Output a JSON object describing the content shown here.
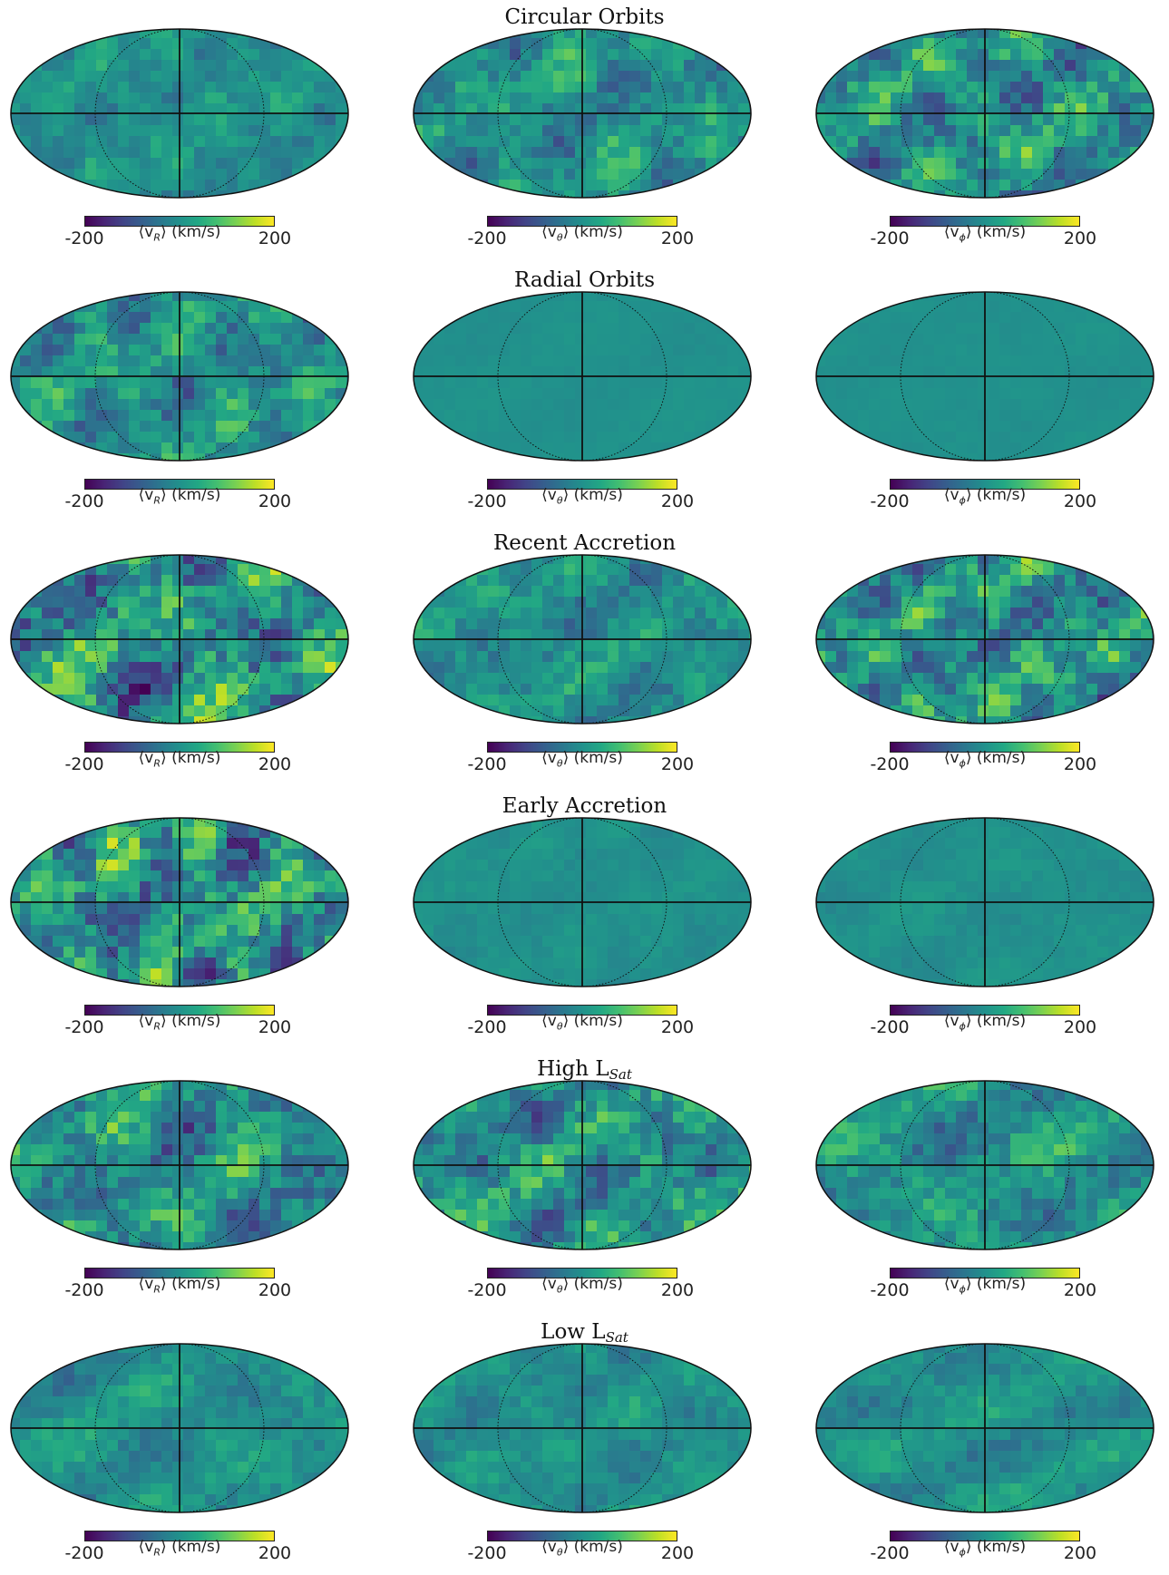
{
  "colors": {
    "viridis": [
      "#440154",
      "#482475",
      "#414487",
      "#355f8d",
      "#2a788e",
      "#21918c",
      "#22a884",
      "#44bf70",
      "#7ad151",
      "#bddf26",
      "#fde725"
    ],
    "grid_line": "#111111"
  },
  "chart_data": {
    "type": "heatmap",
    "projection": "mollweide",
    "grid": true,
    "colorbar": {
      "min": -200,
      "max": 200,
      "colormap": "viridis",
      "tick_min": "-200",
      "tick_max": "200"
    },
    "columns": [
      {
        "quantity": "v",
        "subscript": "R",
        "label_prefix": "⟨v",
        "label_suffix": "⟩ (km/s)"
      },
      {
        "quantity": "v",
        "subscript": "θ",
        "label_prefix": "⟨v",
        "label_suffix": "⟩ (km/s)"
      },
      {
        "quantity": "v",
        "subscript": "ϕ",
        "label_prefix": "⟨v",
        "label_suffix": "⟩ (km/s)"
      }
    ],
    "rows": [
      {
        "title_main": "Circular Orbits",
        "title_sub": "",
        "amplitudes": [
          0.35,
          0.55,
          0.7
        ]
      },
      {
        "title_main": "Radial Orbits",
        "title_sub": "",
        "amplitudes": [
          0.6,
          0.05,
          0.05
        ]
      },
      {
        "title_main": "Recent Accretion",
        "title_sub": "",
        "amplitudes": [
          0.95,
          0.45,
          0.75
        ]
      },
      {
        "title_main": "Early Accretion",
        "title_sub": "",
        "amplitudes": [
          0.9,
          0.12,
          0.12
        ]
      },
      {
        "title_main": "High L",
        "title_sub": "Sat",
        "amplitudes": [
          0.75,
          0.7,
          0.55
        ]
      },
      {
        "title_main": "Low L",
        "title_sub": "Sat",
        "amplitudes": [
          0.35,
          0.3,
          0.3
        ]
      }
    ]
  }
}
